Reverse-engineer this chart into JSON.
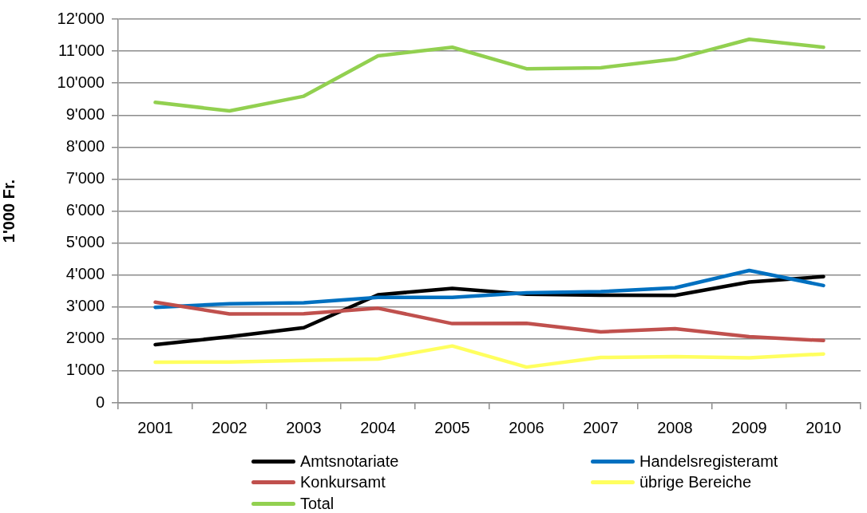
{
  "chart_data": {
    "type": "line",
    "ylabel": "1'000 Fr.",
    "categories": [
      "2001",
      "2002",
      "2003",
      "2004",
      "2005",
      "2006",
      "2007",
      "2008",
      "2009",
      "2010"
    ],
    "series": [
      {
        "name": "Amtsnotariate",
        "color": "#000000",
        "values": [
          1820,
          2070,
          2350,
          3380,
          3580,
          3400,
          3370,
          3360,
          3780,
          3950
        ]
      },
      {
        "name": "Handelsregisteramt",
        "color": "#0070c0",
        "values": [
          2990,
          3100,
          3130,
          3300,
          3300,
          3440,
          3480,
          3600,
          4140,
          3670
        ]
      },
      {
        "name": "Konkursamt",
        "color": "#c0504d",
        "values": [
          3150,
          2780,
          2790,
          2960,
          2480,
          2490,
          2220,
          2320,
          2070,
          1950
        ]
      },
      {
        "name": "übrige Bereiche",
        "color": "#ffff5f",
        "values": [
          1270,
          1280,
          1330,
          1370,
          1780,
          1120,
          1420,
          1450,
          1410,
          1530
        ]
      },
      {
        "name": "Total",
        "color": "#92d050",
        "values": [
          9400,
          9130,
          9590,
          10850,
          11120,
          10450,
          10480,
          10750,
          11370,
          11120
        ]
      }
    ],
    "ylim": [
      0,
      12000
    ],
    "yticks": [
      0,
      {
        "value": 1000,
        "label": "1'000"
      },
      {
        "value": 2000,
        "label": "2'000"
      },
      {
        "value": 3000,
        "label": "3'000"
      },
      {
        "value": 4000,
        "label": "4'000"
      },
      {
        "value": 5000,
        "label": "5'000"
      },
      {
        "value": 6000,
        "label": "6'000"
      },
      {
        "value": 7000,
        "label": "7'000"
      },
      {
        "value": 8000,
        "label": "8'000"
      },
      {
        "value": 9000,
        "label": "9'000"
      },
      {
        "value": 10000,
        "label": "10'000"
      },
      {
        "value": 11000,
        "label": "11'000"
      },
      {
        "value": 12000,
        "label": "12'000"
      }
    ],
    "grid": "y",
    "legend": "bottom"
  }
}
